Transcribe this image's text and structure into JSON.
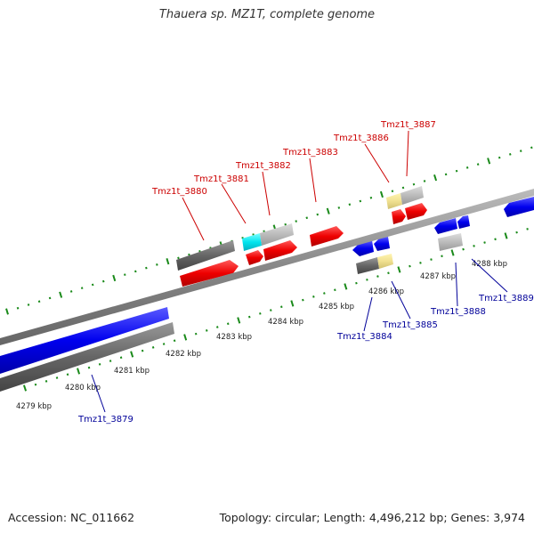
{
  "header": {
    "title": "Thauera sp. MZ1T, complete genome"
  },
  "footer": {
    "accession": "Accession: NC_011662",
    "stats": "Topology: circular; Length: 4,496,212 bp; Genes: 3,974"
  },
  "ticks": [
    {
      "label": "4279 kbp"
    },
    {
      "label": "4280 kbp"
    },
    {
      "label": "4281 kbp"
    },
    {
      "label": "4282 kbp"
    },
    {
      "label": "4283 kbp"
    },
    {
      "label": "4284 kbp"
    },
    {
      "label": "4285 kbp"
    },
    {
      "label": "4286 kbp"
    },
    {
      "label": "4287 kbp"
    },
    {
      "label": "4288 kbp"
    }
  ],
  "genes": [
    {
      "name": "Tmz1t_3879",
      "strand": "reverse"
    },
    {
      "name": "Tmz1t_3880",
      "strand": "forward"
    },
    {
      "name": "Tmz1t_3881",
      "strand": "forward"
    },
    {
      "name": "Tmz1t_3882",
      "strand": "forward"
    },
    {
      "name": "Tmz1t_3883",
      "strand": "forward"
    },
    {
      "name": "Tmz1t_3884",
      "strand": "reverse"
    },
    {
      "name": "Tmz1t_3885",
      "strand": "reverse"
    },
    {
      "name": "Tmz1t_3886",
      "strand": "forward"
    },
    {
      "name": "Tmz1t_3887",
      "strand": "forward"
    },
    {
      "name": "Tmz1t_3888",
      "strand": "reverse"
    },
    {
      "name": "Tmz1t_3889",
      "strand": "reverse"
    }
  ],
  "colors": {
    "forward_gene": "#ff0000",
    "reverse_gene": "#0000ff",
    "forward_label": "#cc0000",
    "reverse_label": "#000099",
    "tick": "#1a8a1a",
    "backbone": "#888888"
  }
}
